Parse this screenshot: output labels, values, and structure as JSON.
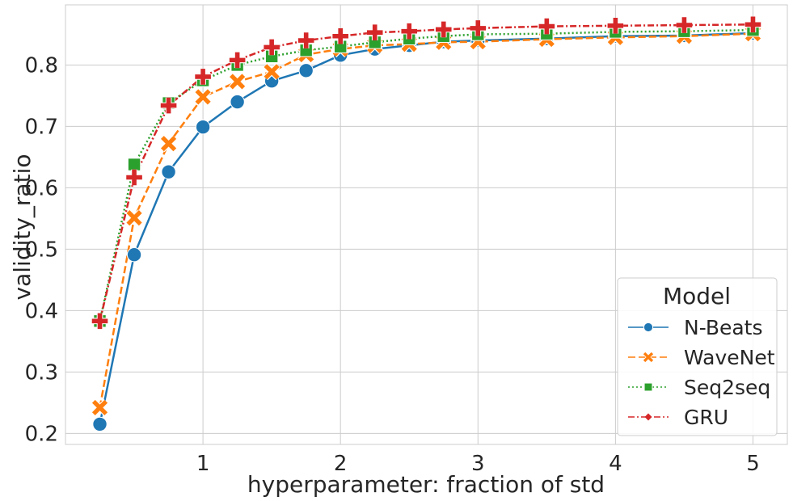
{
  "chart_data": {
    "type": "line",
    "xlabel": "hyperparameter: fraction of std",
    "ylabel": "validity_ratio",
    "xlim": [
      0.0,
      5.25
    ],
    "ylim": [
      0.182,
      0.898
    ],
    "x_ticks": [
      1,
      2,
      3,
      4,
      5
    ],
    "x_tick_labels": [
      "1",
      "2",
      "3",
      "4",
      "5"
    ],
    "y_ticks": [
      0.2,
      0.3,
      0.4,
      0.5,
      0.6,
      0.7,
      0.8
    ],
    "y_tick_labels": [
      "0.2",
      "0.3",
      "0.4",
      "0.5",
      "0.6",
      "0.7",
      "0.8"
    ],
    "grid": true,
    "legend": {
      "title": "Model",
      "position": "bottom-right"
    },
    "x": [
      0.25,
      0.5,
      0.75,
      1.0,
      1.25,
      1.5,
      1.75,
      2.0,
      2.25,
      2.5,
      2.75,
      3.0,
      3.5,
      4.0,
      4.5,
      5.0
    ],
    "series": [
      {
        "name": "N-Beats",
        "color": "#1f77b4",
        "marker": "circle",
        "dash": "solid",
        "values": [
          0.215,
          0.491,
          0.626,
          0.699,
          0.74,
          0.774,
          0.791,
          0.816,
          0.826,
          0.832,
          0.838,
          0.84,
          0.843,
          0.847,
          0.848,
          0.852
        ]
      },
      {
        "name": "WaveNet",
        "color": "#ff7f0e",
        "marker": "x",
        "dash": "dashed",
        "values": [
          0.242,
          0.551,
          0.672,
          0.748,
          0.773,
          0.789,
          0.817,
          0.826,
          0.832,
          0.834,
          0.837,
          0.838,
          0.842,
          0.845,
          0.847,
          0.851
        ]
      },
      {
        "name": "Seq2seq",
        "color": "#2ca02c",
        "marker": "square",
        "dash": "dotted",
        "values": [
          0.383,
          0.638,
          0.738,
          0.775,
          0.8,
          0.814,
          0.824,
          0.83,
          0.837,
          0.843,
          0.847,
          0.85,
          0.851,
          0.854,
          0.855,
          0.857
        ]
      },
      {
        "name": "GRU",
        "color": "#d62728",
        "marker": "plus",
        "dash": "dashdot",
        "values": [
          0.383,
          0.617,
          0.734,
          0.781,
          0.808,
          0.829,
          0.84,
          0.847,
          0.853,
          0.855,
          0.858,
          0.86,
          0.863,
          0.864,
          0.865,
          0.866
        ]
      }
    ]
  }
}
